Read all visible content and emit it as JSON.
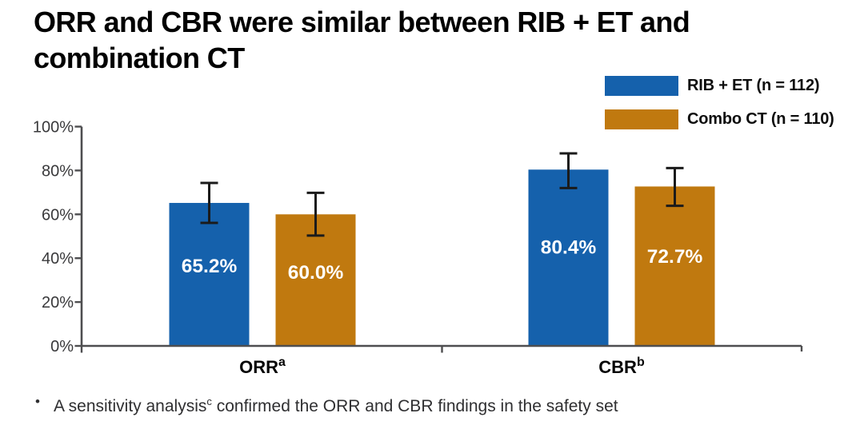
{
  "title": "ORR and CBR were similar between RIB + ET and combination CT",
  "legend": {
    "items": [
      {
        "label": "RIB + ET (n = 112)"
      },
      {
        "label": "Combo CT (n = 110)"
      }
    ]
  },
  "footnote": {
    "bullet": "•",
    "text": "A sensitivity analysis",
    "superscript": "c",
    "text_after": " confirmed the ORR and CBR findings in the safety set"
  },
  "chart_data": {
    "type": "bar",
    "categories": [
      "ORR",
      "CBR"
    ],
    "category_superscripts": [
      "a",
      "b"
    ],
    "series": [
      {
        "name": "RIB + ET (n = 112)",
        "color": "#1561ac",
        "values": [
          65.2,
          80.4
        ],
        "value_labels": [
          "65.2%",
          "80.4%"
        ],
        "error_low": [
          56.1,
          72.0
        ],
        "error_high": [
          74.3,
          87.8
        ]
      },
      {
        "name": "Combo CT (n = 110)",
        "color": "#c0790f",
        "values": [
          60.0,
          72.7
        ],
        "value_labels": [
          "60.0%",
          "72.7%"
        ],
        "error_low": [
          50.3,
          63.9
        ],
        "error_high": [
          69.8,
          81.1
        ]
      }
    ],
    "ylabel": "",
    "ylim": [
      0,
      100
    ],
    "ytick_labels": [
      "0%",
      "20%",
      "40%",
      "60%",
      "80%",
      "100%"
    ],
    "ytick_values": [
      0,
      20,
      40,
      60,
      80,
      100
    ],
    "grid": false,
    "legend_position": "top-right",
    "value_label_color": "#ffffff",
    "error_bar_color": "#1b1b1b"
  }
}
